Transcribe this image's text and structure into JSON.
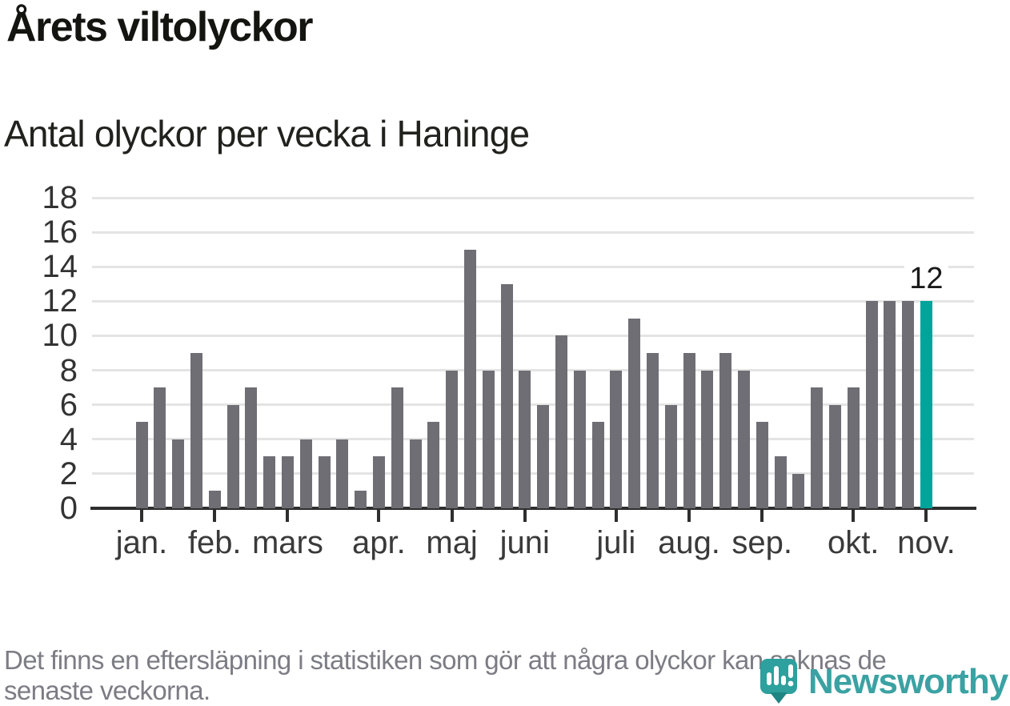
{
  "title": "Årets viltolyckor",
  "subtitle": "Antal olyckor per vecka i Haninge",
  "footer": {
    "lines": [
      "Det finns en eftersläpning i statistiken som gör att några olyckor kan saknas de",
      "senaste veckorna."
    ]
  },
  "logo": {
    "text": "Newsworthy",
    "icon": "newsworthy-pin-bar-chart-icon",
    "color": "#3ba2a3"
  },
  "colors": {
    "bar": "#6f6e74",
    "highlight_bar": "#00a49b",
    "gridline": "#e4e4e4",
    "axis": "#2e2e2e",
    "footer_text": "#7c7c84"
  },
  "chart_data": {
    "type": "bar",
    "title": "Årets viltolyckor",
    "subtitle": "Antal olyckor per vecka i Haninge",
    "xlabel": "",
    "ylabel": "",
    "ylim": [
      0,
      18
    ],
    "yticks": [
      0,
      2,
      4,
      6,
      8,
      10,
      12,
      14,
      16,
      18
    ],
    "grid": true,
    "legend": "none",
    "categories_note": "one bar per week, january through november",
    "month_labels": [
      "jan.",
      "feb.",
      "mars",
      "apr.",
      "maj",
      "juni",
      "juli",
      "aug.",
      "sep.",
      "okt.",
      "nov."
    ],
    "month_tick_bar_index": [
      0,
      4,
      8,
      13,
      17,
      21,
      26,
      30,
      34,
      39,
      43
    ],
    "values": [
      5,
      7,
      4,
      9,
      1,
      6,
      7,
      3,
      3,
      4,
      3,
      4,
      1,
      3,
      7,
      4,
      5,
      8,
      15,
      8,
      13,
      8,
      6,
      10,
      8,
      5,
      8,
      11,
      9,
      6,
      9,
      8,
      9,
      8,
      5,
      3,
      2,
      7,
      6,
      7,
      12,
      12,
      12,
      12
    ],
    "highlight_index": 43,
    "annotation": {
      "text": "12",
      "bar_index": 43
    }
  }
}
